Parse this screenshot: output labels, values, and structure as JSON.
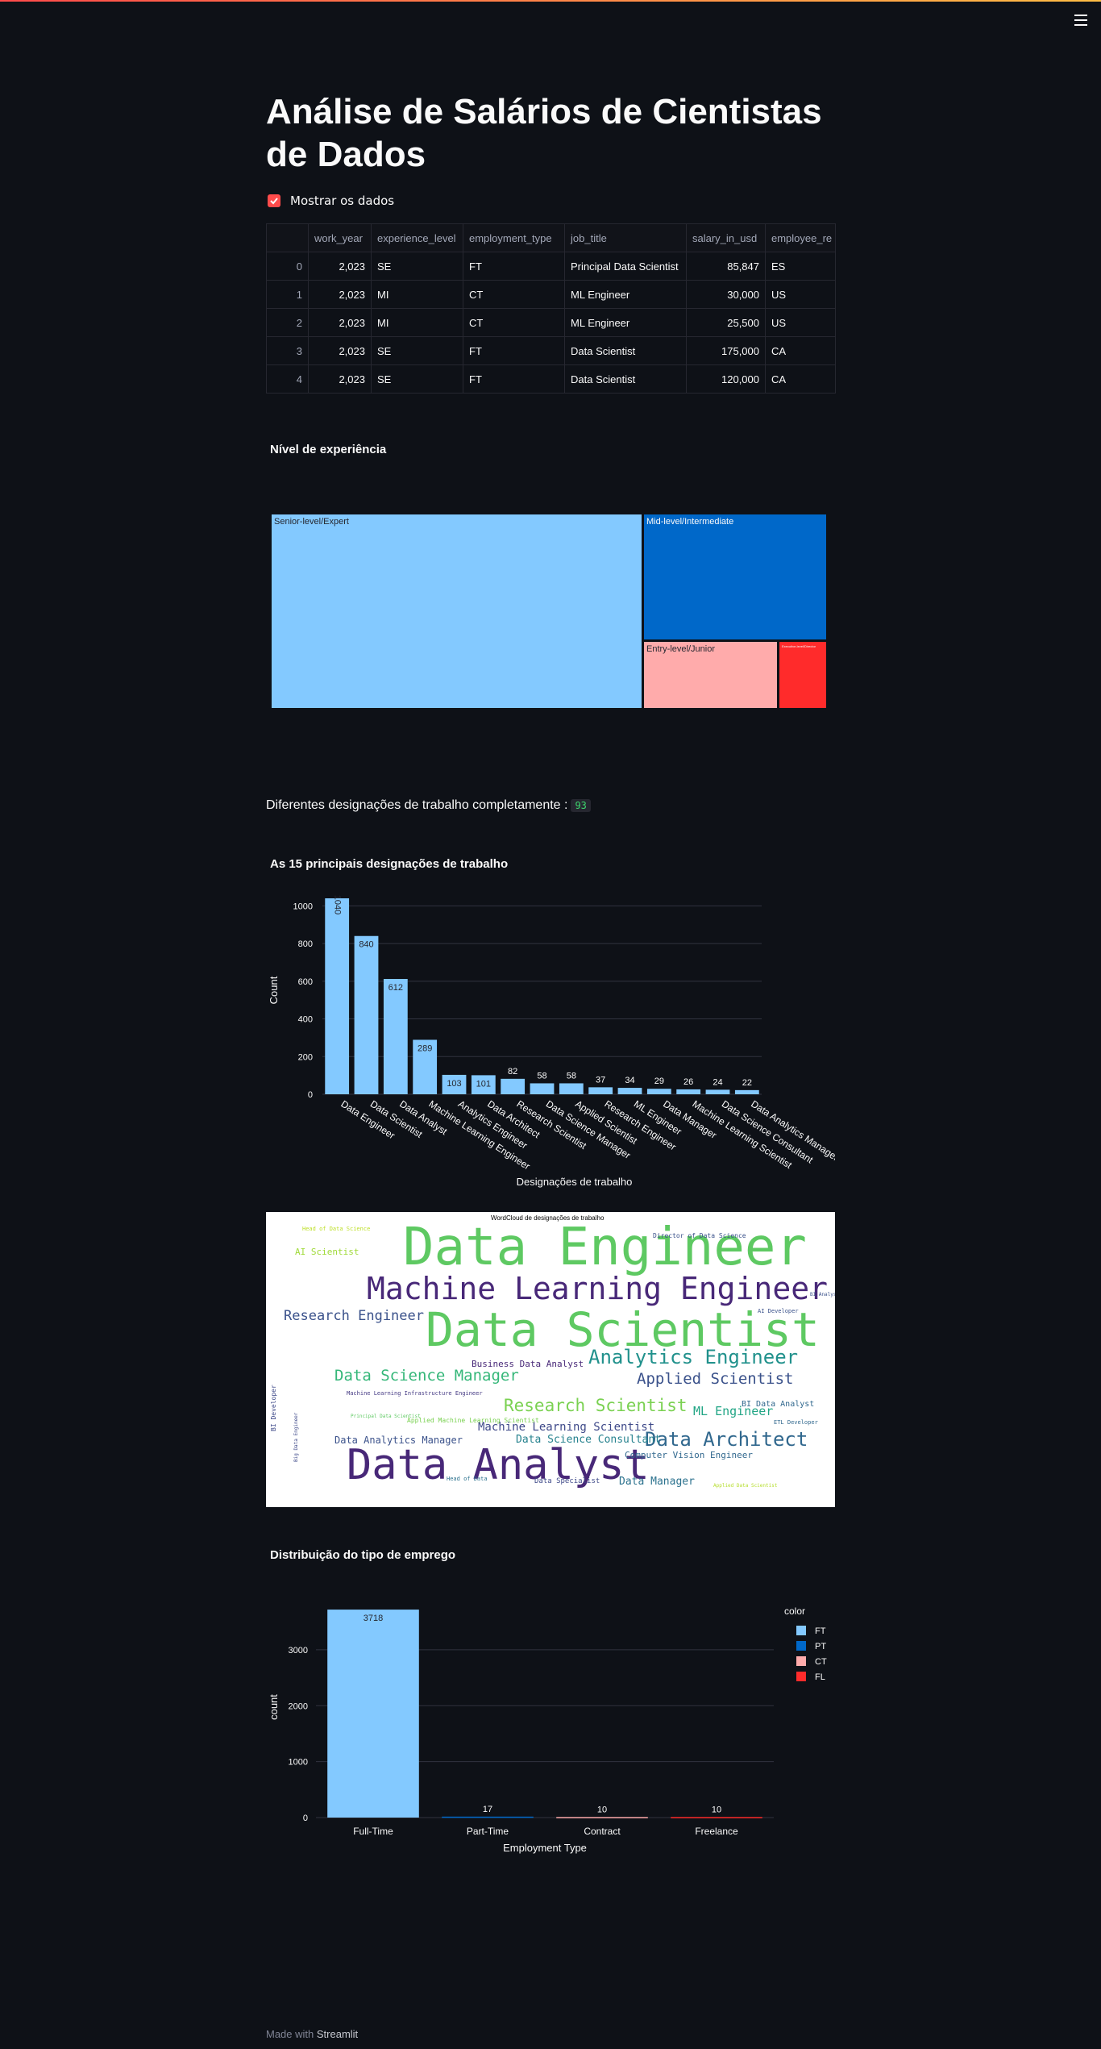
{
  "app": {
    "title": "Análise de Salários de Cientistas de Dados",
    "checkbox_label": "Mostrar os dados",
    "footer_prefix": "Made with",
    "footer_brand": "Streamlit"
  },
  "table": {
    "columns": [
      "",
      "work_year",
      "experience_level",
      "employment_type",
      "job_title",
      "salary_in_usd",
      "employee_re"
    ],
    "rows": [
      [
        "0",
        "2,023",
        "SE",
        "FT",
        "Principal Data Scientist",
        "85,847",
        "ES"
      ],
      [
        "1",
        "2,023",
        "MI",
        "CT",
        "ML Engineer",
        "30,000",
        "US"
      ],
      [
        "2",
        "2,023",
        "MI",
        "CT",
        "ML Engineer",
        "25,500",
        "US"
      ],
      [
        "3",
        "2,023",
        "SE",
        "FT",
        "Data Scientist",
        "175,000",
        "CA"
      ],
      [
        "4",
        "2,023",
        "SE",
        "FT",
        "Data Scientist",
        "120,000",
        "CA"
      ]
    ]
  },
  "experience": {
    "title": "Nível de experiência",
    "tiles": [
      {
        "label": "Senior-level/Expert",
        "color": "#83c9ff"
      },
      {
        "label": "Mid-level/Intermediate",
        "color": "#0068c9"
      },
      {
        "label": "Entry-level/Junior",
        "color": "#ffabab"
      },
      {
        "label": "Executive-level/Director",
        "color": "#ff2b2b"
      }
    ]
  },
  "designations": {
    "label": "Diferentes designações de trabalho completamente :",
    "count": "93"
  },
  "chart_data": [
    {
      "type": "bar",
      "title": "As 15 principais designações de trabalho",
      "xlabel": "Designações de trabalho",
      "ylabel": "Count",
      "ylim": [
        0,
        1100
      ],
      "yticks": [
        0,
        200,
        400,
        600,
        800,
        1000
      ],
      "categories": [
        "Data Engineer",
        "Data Scientist",
        "Data Analyst",
        "Machine Learning Engineer",
        "Analytics Engineer",
        "Data Architect",
        "Research Scientist",
        "Data Science Manager",
        "Applied Scientist",
        "Research Engineer",
        "ML Engineer",
        "Data Manager",
        "Machine Learning Scientist",
        "Data Science Consultant",
        "Data Analytics Manager"
      ],
      "values": [
        1040,
        840,
        612,
        289,
        103,
        101,
        82,
        58,
        58,
        37,
        34,
        29,
        26,
        24,
        22
      ],
      "color": "#83c9ff"
    },
    {
      "type": "bar",
      "title": "Distribuição do tipo de emprego",
      "xlabel": "Employment Type",
      "ylabel": "count",
      "ylim": [
        0,
        3950
      ],
      "yticks": [
        0,
        1000,
        2000,
        3000
      ],
      "categories": [
        "Full-Time",
        "Part-Time",
        "Contract",
        "Freelance"
      ],
      "values": [
        3718,
        17,
        10,
        10
      ],
      "colors": [
        "#83c9ff",
        "#0068c9",
        "#ffabab",
        "#ff2b2b"
      ],
      "legend_title": "color",
      "legend": [
        "FT",
        "PT",
        "CT",
        "FL"
      ],
      "legend_position": "right"
    }
  ],
  "wordcloud": {
    "title": "WordCloud de designações de trabalho",
    "words": [
      {
        "text": "Data Engineer",
        "color": "#5ec962",
        "size": 64
      },
      {
        "text": "Machine Learning Engineer",
        "color": "#482878",
        "size": 38
      },
      {
        "text": "Data Scientist",
        "color": "#5ec962",
        "size": 58
      },
      {
        "text": "Data Analyst",
        "color": "#482878",
        "size": 52
      },
      {
        "text": "Analytics Engineer",
        "color": "#21918c",
        "size": 24
      },
      {
        "text": "Research Engineer",
        "color": "#3b528b",
        "size": 17
      },
      {
        "text": "Data Science Manager",
        "color": "#35b779",
        "size": 19
      },
      {
        "text": "Applied Scientist",
        "color": "#3b528b",
        "size": 19
      },
      {
        "text": "Research Scientist",
        "color": "#7ad151",
        "size": 21
      },
      {
        "text": "Data Architect",
        "color": "#31688e",
        "size": 24
      },
      {
        "text": "Machine Learning Scientist",
        "color": "#3e4989",
        "size": 14
      },
      {
        "text": "ML Engineer",
        "color": "#21a585",
        "size": 15
      },
      {
        "text": "Data Analytics Manager",
        "color": "#3b528b",
        "size": 12
      },
      {
        "text": "Data Science Consultant",
        "color": "#26828e",
        "size": 13
      },
      {
        "text": "Business Data Analyst",
        "color": "#482878",
        "size": 11
      },
      {
        "text": "Computer Vision Engineer",
        "color": "#31688e",
        "size": 11
      },
      {
        "text": "Data Manager",
        "color": "#2c728e",
        "size": 13
      },
      {
        "text": "AI Scientist",
        "color": "#a0da39",
        "size": 11
      },
      {
        "text": "BI Data Analyst",
        "color": "#31688e",
        "size": 10
      },
      {
        "text": "Data Specialist",
        "color": "#3e4989",
        "size": 9
      },
      {
        "text": "Machine Learning Infrastructure Engineer",
        "color": "#443983",
        "size": 7
      },
      {
        "text": "Director of Data Science",
        "color": "#3b528b",
        "size": 8
      },
      {
        "text": "Head of Data Science",
        "color": "#bddf26",
        "size": 7
      },
      {
        "text": "Head of Data",
        "color": "#2c728e",
        "size": 7
      },
      {
        "text": "Applied Machine Learning Scientist",
        "color": "#7ad151",
        "size": 8
      },
      {
        "text": "BI Developer",
        "color": "#3e4989",
        "size": 8
      },
      {
        "text": "ETL Developer",
        "color": "#31688e",
        "size": 7
      },
      {
        "text": "AI Developer",
        "color": "#3b528b",
        "size": 7
      },
      {
        "text": "Principal Data Scientist",
        "color": "#5ec962",
        "size": 6
      },
      {
        "text": "Big Data Engineer",
        "color": "#3e4989",
        "size": 6
      },
      {
        "text": "Applied Data Scientist",
        "color": "#b5de2b",
        "size": 6
      },
      {
        "text": "BI Analyst",
        "color": "#3b528b",
        "size": 6
      }
    ]
  }
}
